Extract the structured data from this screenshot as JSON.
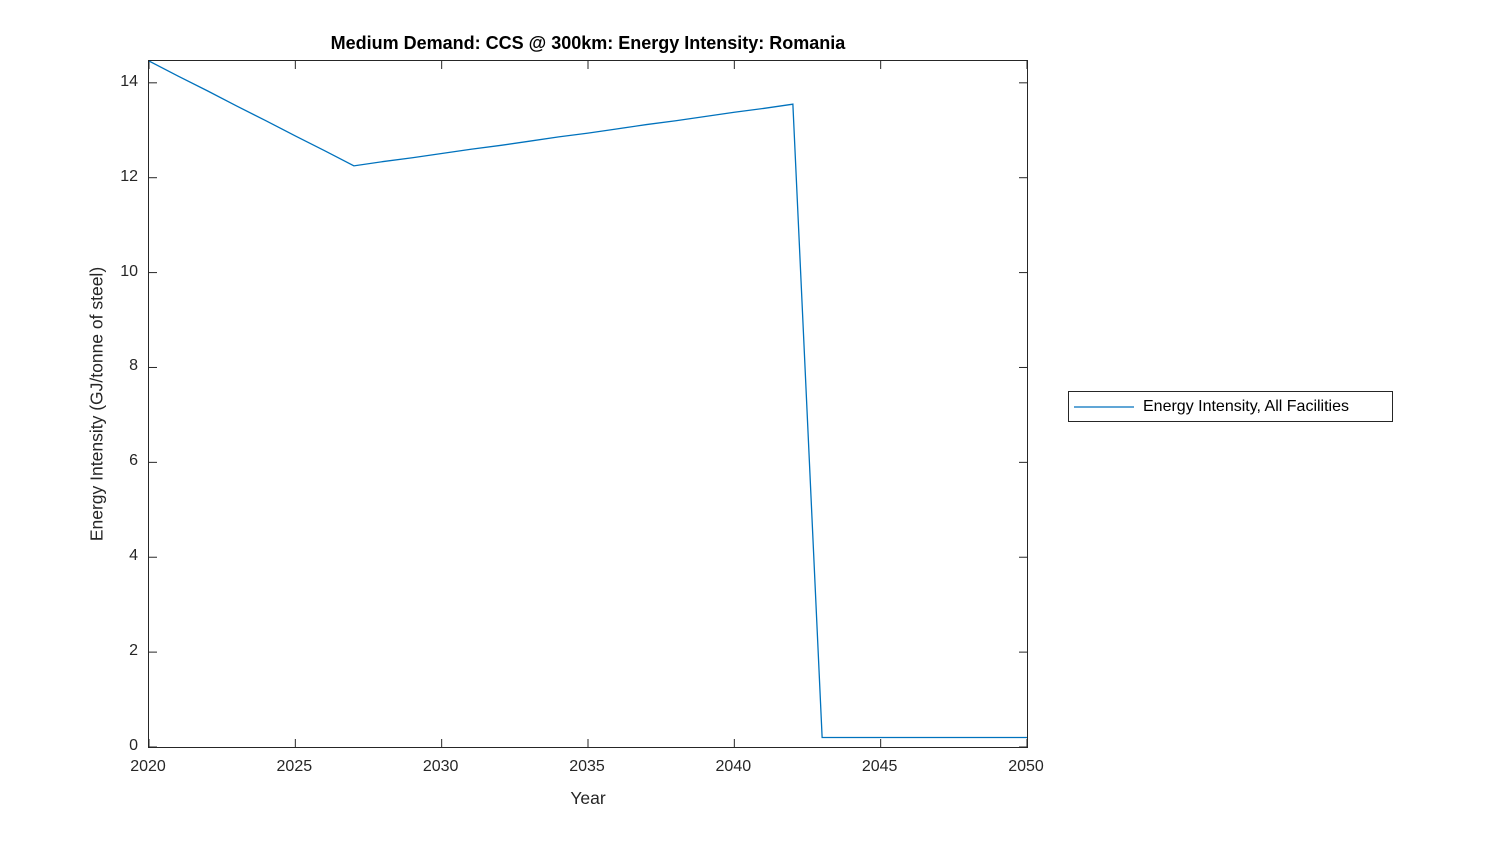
{
  "chart_data": {
    "type": "line",
    "title": "Medium Demand: CCS @ 300km: Energy Intensity: Romania",
    "xlabel": "Year",
    "ylabel": "Energy Intensity (GJ/tonne of steel)",
    "xlim": [
      2020,
      2050
    ],
    "ylim": [
      0,
      14.46
    ],
    "x_ticks": [
      2020,
      2025,
      2030,
      2035,
      2040,
      2045,
      2050
    ],
    "y_ticks": [
      0,
      2,
      4,
      6,
      8,
      10,
      12,
      14
    ],
    "grid": false,
    "legend_position": "outside-right",
    "colors": {
      "line": "#0072BD",
      "axis": "#262626",
      "background": "#ffffff"
    },
    "series": [
      {
        "name": "Energy Intensity, All Facilities",
        "color": "#0072BD",
        "x": [
          2020,
          2021,
          2022,
          2023,
          2024,
          2025,
          2026,
          2027,
          2028,
          2029,
          2030,
          2031,
          2032,
          2033,
          2034,
          2035,
          2036,
          2037,
          2038,
          2039,
          2040,
          2041,
          2042,
          2043,
          2044,
          2045,
          2046,
          2047,
          2048,
          2049,
          2050
        ],
        "values": [
          14.46,
          14.14,
          13.83,
          13.51,
          13.2,
          12.88,
          12.57,
          12.25,
          12.34,
          12.42,
          12.51,
          12.6,
          12.68,
          12.77,
          12.86,
          12.94,
          13.03,
          13.12,
          13.2,
          13.29,
          13.38,
          13.46,
          13.55,
          0.2,
          0.2,
          0.2,
          0.2,
          0.2,
          0.2,
          0.2,
          0.2
        ]
      }
    ]
  }
}
